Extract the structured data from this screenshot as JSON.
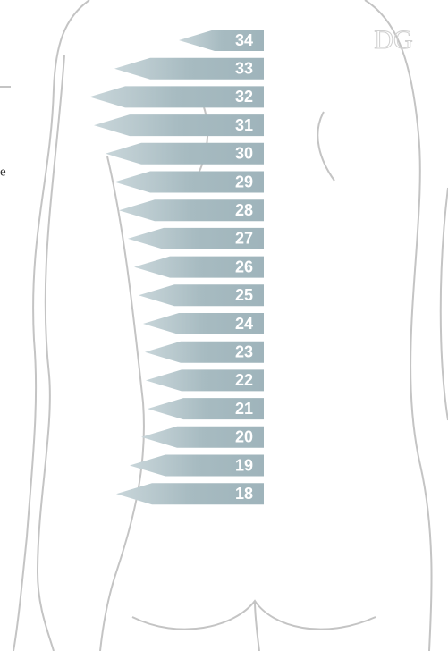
{
  "labels": [
    "34",
    "33",
    "32",
    "31",
    "30",
    "29",
    "28",
    "27",
    "26",
    "25",
    "24",
    "23",
    "22",
    "21",
    "20",
    "19",
    "18"
  ],
  "logo": "DG",
  "side_text": "e"
}
